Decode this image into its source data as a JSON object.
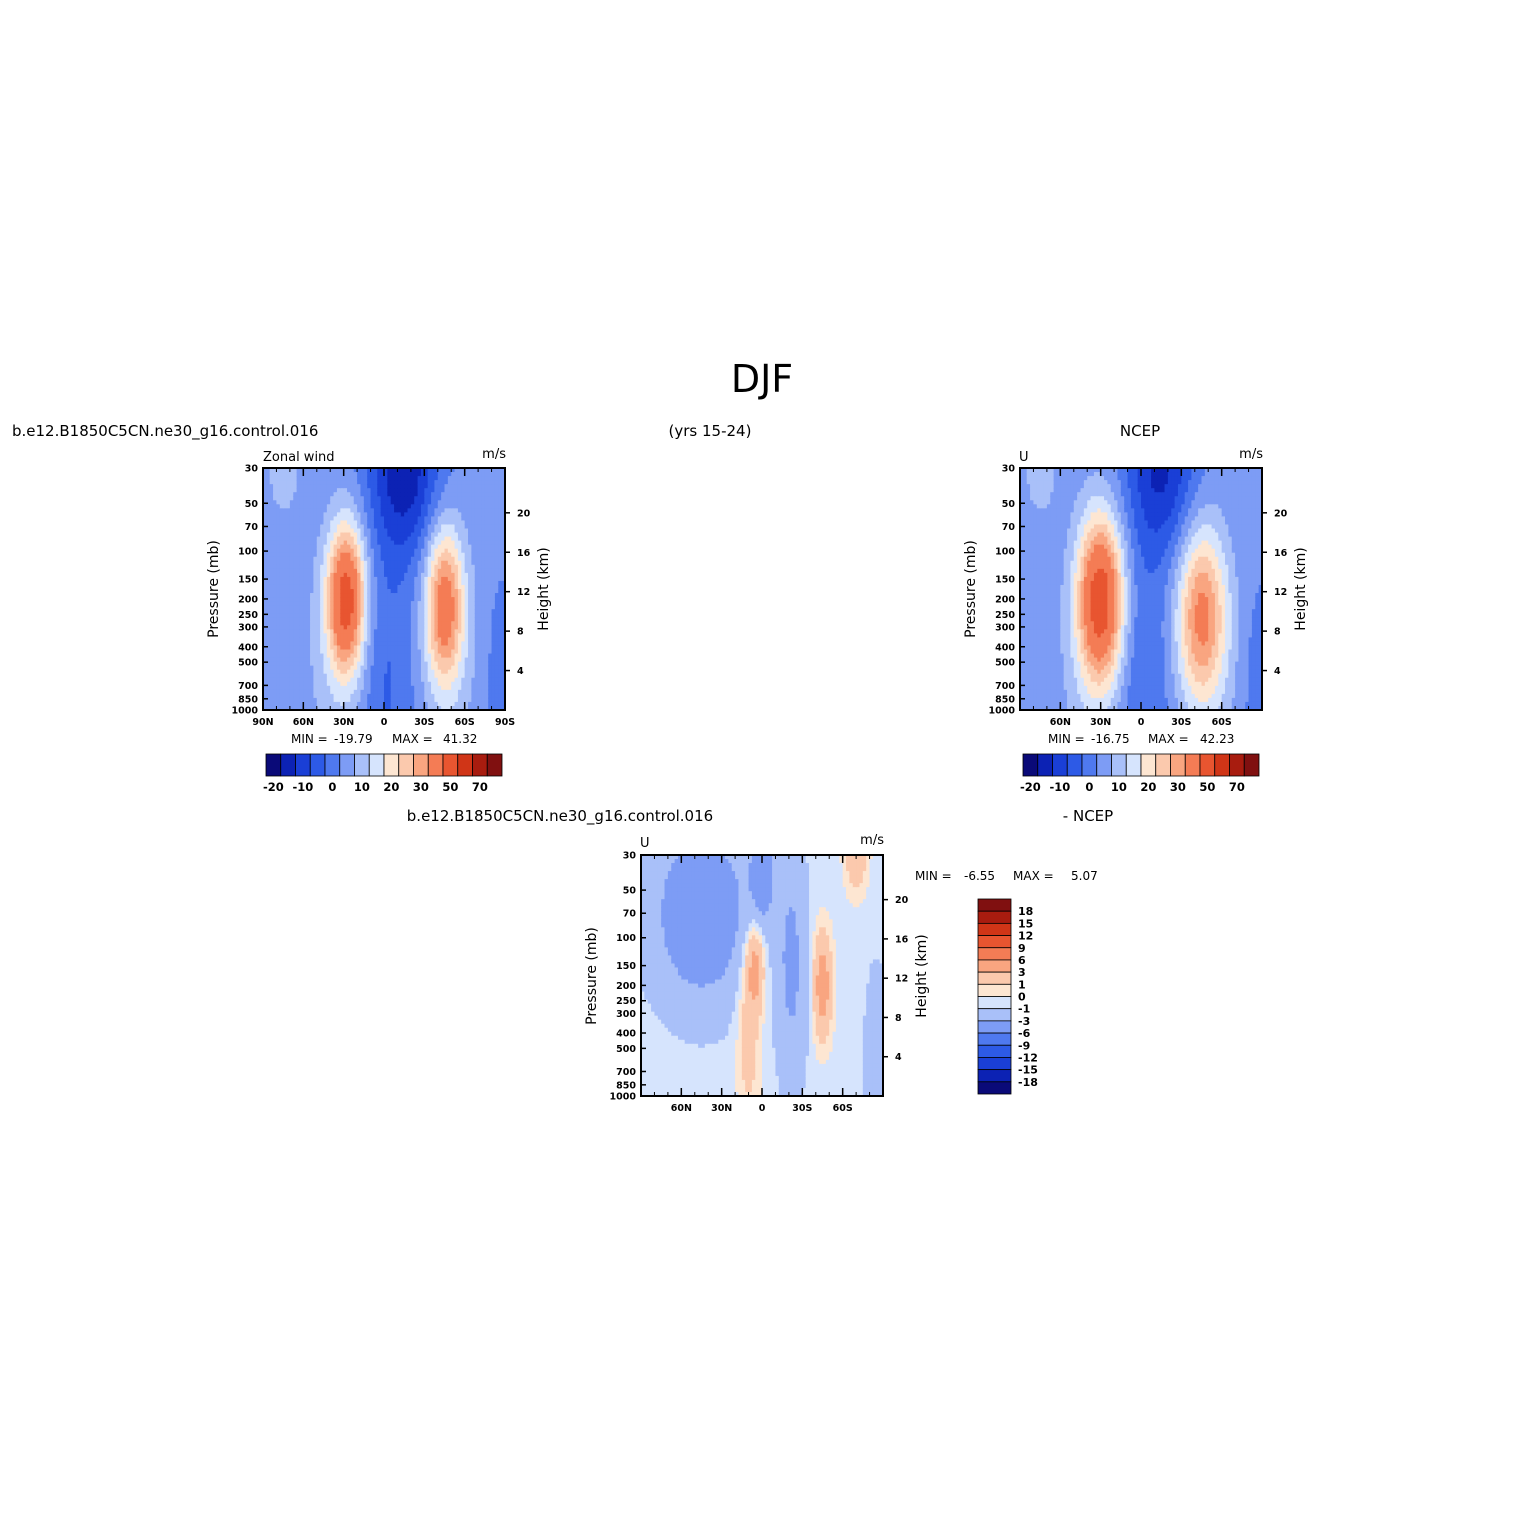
{
  "header": {
    "title": "DJF",
    "model_case": "b.e12.B1850C5CN.ne30_g16.control.016",
    "years": "(yrs 15-24)",
    "obs_name": "NCEP",
    "diff_case": "b.e12.B1850C5CN.ne30_g16.control.016",
    "diff_obs": "- NCEP"
  },
  "colors": {
    "abs_palette": [
      "#0a0a78",
      "#0c22b4",
      "#1a3fd6",
      "#2d5ae6",
      "#4f79ef",
      "#7d9cf5",
      "#a9c0f9",
      "#d6e4fd",
      "#fde6d2",
      "#fbc9ad",
      "#f9a580",
      "#f47c55",
      "#e85530",
      "#d03517",
      "#a81c0f",
      "#801010"
    ],
    "diff_palette": [
      "#0a0a78",
      "#0c22b4",
      "#1a3fd6",
      "#2d5ae6",
      "#4f79ef",
      "#7d9cf5",
      "#a9c0f9",
      "#d6e4fd",
      "#fde6d2",
      "#fbc9ad",
      "#f9a580",
      "#f47c55",
      "#e85530",
      "#d03517",
      "#a81c0f",
      "#801010"
    ]
  },
  "chart_data": [
    {
      "type": "heatmap",
      "id": "model",
      "title": "Zonal wind",
      "units": "m/s",
      "ylabel": "Pressure (mb)",
      "y2label": "Height (km)",
      "x_ticks": [
        "90N",
        "60N",
        "30N",
        "0",
        "30S",
        "60S",
        "90S"
      ],
      "y_ticks": [
        "30",
        "50",
        "70",
        "100",
        "150",
        "200",
        "250",
        "300",
        "400",
        "500",
        "700",
        "850",
        "1000"
      ],
      "y2_ticks": [
        "20",
        "16",
        "12",
        "8",
        "4"
      ],
      "stats": {
        "min_label": "MIN =",
        "min": "-19.79",
        "max_label": "MAX =",
        "max": "41.32"
      },
      "colorbar_labels": [
        "-20",
        "-10",
        "0",
        "10",
        "20",
        "30",
        "50",
        "70"
      ],
      "jets": [
        {
          "lat": 28,
          "pressure": 200,
          "max": 41.32
        },
        {
          "lat": -45,
          "pressure": 220,
          "max": 32
        }
      ],
      "min_center": {
        "lat": -15,
        "pressure": 30,
        "value": -19.79
      }
    },
    {
      "type": "heatmap",
      "id": "obs",
      "title": "U",
      "units": "m/s",
      "ylabel": "Pressure (mb)",
      "y2label": "Height (km)",
      "x_ticks": [
        "60N",
        "30N",
        "0",
        "30S",
        "60S"
      ],
      "y_ticks": [
        "30",
        "50",
        "70",
        "100",
        "150",
        "200",
        "250",
        "300",
        "400",
        "500",
        "700",
        "850",
        "1000"
      ],
      "y2_ticks": [
        "20",
        "16",
        "12",
        "8",
        "4"
      ],
      "stats": {
        "min_label": "MIN =",
        "min": "-16.75",
        "max_label": "MAX =",
        "max": "42.23"
      },
      "colorbar_labels": [
        "-20",
        "-10",
        "0",
        "10",
        "20",
        "30",
        "50",
        "70"
      ],
      "jets": [
        {
          "lat": 30,
          "pressure": 200,
          "max": 42.23
        },
        {
          "lat": -45,
          "pressure": 250,
          "max": 28
        }
      ],
      "min_center": {
        "lat": -15,
        "pressure": 30,
        "value": -16.75
      }
    },
    {
      "type": "heatmap",
      "id": "diff",
      "title": "U",
      "units": "m/s",
      "ylabel": "Pressure (mb)",
      "y2label": "Height (km)",
      "x_ticks": [
        "60N",
        "30N",
        "0",
        "30S",
        "60S"
      ],
      "y_ticks": [
        "30",
        "50",
        "70",
        "100",
        "150",
        "200",
        "250",
        "300",
        "400",
        "500",
        "700",
        "850",
        "1000"
      ],
      "y2_ticks": [
        "20",
        "16",
        "12",
        "8",
        "4"
      ],
      "stats": {
        "min_label": "MIN =",
        "min": "-6.55",
        "max_label": "MAX =",
        "max": "5.07"
      },
      "colorbar_labels": [
        "18",
        "15",
        "12",
        "9",
        "6",
        "3",
        "1",
        "0",
        "-1",
        "-3",
        "-6",
        "-9",
        "-12",
        "-15",
        "-18"
      ]
    }
  ]
}
